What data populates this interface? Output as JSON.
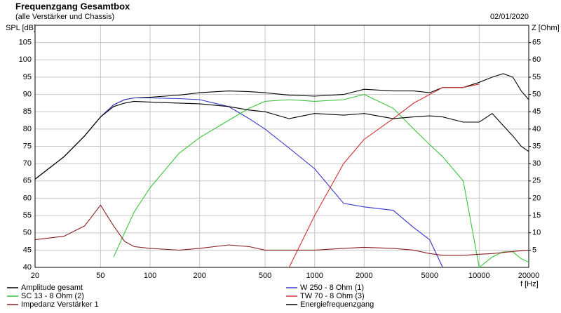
{
  "chart_data": {
    "type": "line",
    "title": "Frequenzgang Gesamtbox",
    "subtitle": "(alle Verstärker und Chassis)",
    "date": "02/01/2020",
    "y_label": "SPL [dB]",
    "y2_label": "Z [Ohm]",
    "x_label": "f [Hz]",
    "log_x": true,
    "grid": true,
    "xlim": [
      20,
      20000
    ],
    "xticks": [
      20,
      50,
      100,
      200,
      500,
      1000,
      2000,
      5000,
      10000,
      20000
    ],
    "ylim": [
      40,
      110
    ],
    "yticks": [
      40,
      45,
      50,
      55,
      60,
      65,
      70,
      75,
      80,
      85,
      90,
      95,
      100,
      105
    ],
    "y2lim": [
      0,
      70
    ],
    "y2ticks": [
      5,
      10,
      15,
      20,
      25,
      30,
      35,
      40,
      45,
      50,
      55,
      60,
      65
    ],
    "x": [
      20,
      30,
      40,
      50,
      60,
      70,
      80,
      100,
      150,
      200,
      300,
      400,
      500,
      700,
      1000,
      1500,
      2000,
      3000,
      4000,
      5000,
      6000,
      8000,
      10000,
      12000,
      14000,
      16000,
      18000,
      20000
    ],
    "series": [
      {
        "name": "Amplitude gesamt",
        "color": "#000000",
        "values": [
          65.5,
          72,
          78,
          83.5,
          87,
          88.5,
          89,
          89.2,
          89.8,
          90.5,
          91,
          90.8,
          90.5,
          89.8,
          89.5,
          90,
          91.5,
          91,
          91,
          90.5,
          92,
          92,
          93.5,
          95,
          96,
          95,
          91,
          88.5
        ]
      },
      {
        "name": "W 250 - 8 Ohm (1)",
        "color": "#3535c8",
        "values": [
          65.5,
          72,
          78,
          83.5,
          87,
          88.5,
          89,
          89,
          88.8,
          88.5,
          86.5,
          83,
          80,
          74.5,
          68.5,
          58.5,
          57.5,
          56.5,
          51.5,
          48,
          40,
          null,
          null,
          null,
          null,
          null,
          null,
          null
        ]
      },
      {
        "name": "SC 13 - 8 Ohm (2)",
        "color": "#39c439",
        "values": [
          null,
          null,
          null,
          null,
          43,
          50,
          56,
          63,
          73,
          77.5,
          82.5,
          86,
          88,
          88.5,
          88,
          88.5,
          90,
          86,
          80,
          75.5,
          72,
          65,
          40,
          43,
          44.5,
          44.5,
          42.5,
          41.5
        ]
      },
      {
        "name": "TW 70 - 8 Ohm (3)",
        "color": "#d03030",
        "values": [
          null,
          null,
          null,
          null,
          null,
          null,
          null,
          null,
          null,
          null,
          null,
          null,
          null,
          40,
          55,
          70,
          77,
          83,
          87.5,
          90,
          92,
          92,
          93,
          null,
          null,
          null,
          null,
          null
        ]
      },
      {
        "name": "Impedanz Verstärker 1",
        "color": "#8b2020",
        "axis": "y2",
        "values": [
          8,
          9,
          12,
          18,
          12,
          7.5,
          6,
          5.5,
          5,
          5.5,
          6.5,
          6,
          5,
          5,
          5,
          5.5,
          5.8,
          5.5,
          5,
          4,
          3.5,
          3.5,
          3.8,
          4,
          4.3,
          4.6,
          4.8,
          5
        ]
      },
      {
        "name": "Energiefrequenzgang",
        "color": "#000000",
        "values": [
          65.5,
          72,
          78,
          83.5,
          86.5,
          87.5,
          88,
          87.8,
          87.5,
          87.3,
          86.5,
          85.5,
          85,
          83,
          84.5,
          84,
          84.5,
          83,
          83.5,
          83.8,
          83.5,
          82,
          82,
          84.5,
          81,
          78,
          75,
          73.5
        ]
      }
    ]
  }
}
